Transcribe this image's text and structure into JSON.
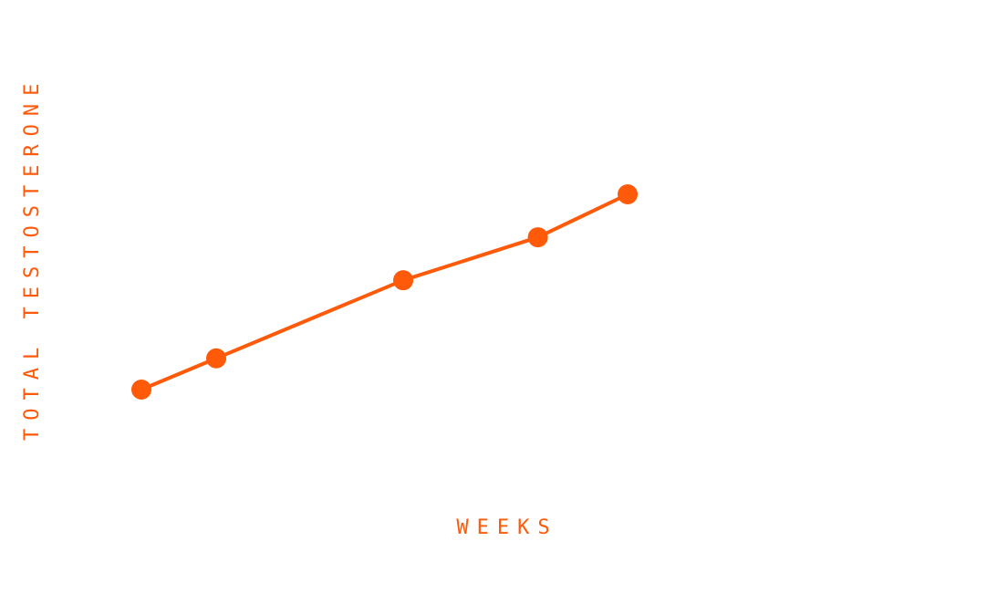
{
  "chart_data": {
    "type": "line",
    "title": "",
    "xlabel": "WEEKS",
    "ylabel": "TOTAL TESTOSTERONE",
    "x": [
      0,
      1,
      3.5,
      5.3,
      6.5
    ],
    "series": [
      {
        "values": [
          0,
          0.16,
          0.56,
          0.78,
          1.0
        ]
      }
    ],
    "xlim": [
      0,
      6.5
    ],
    "ylim": [
      0,
      1
    ],
    "grid": false,
    "legend": "none",
    "color": "#ff5a0a"
  }
}
